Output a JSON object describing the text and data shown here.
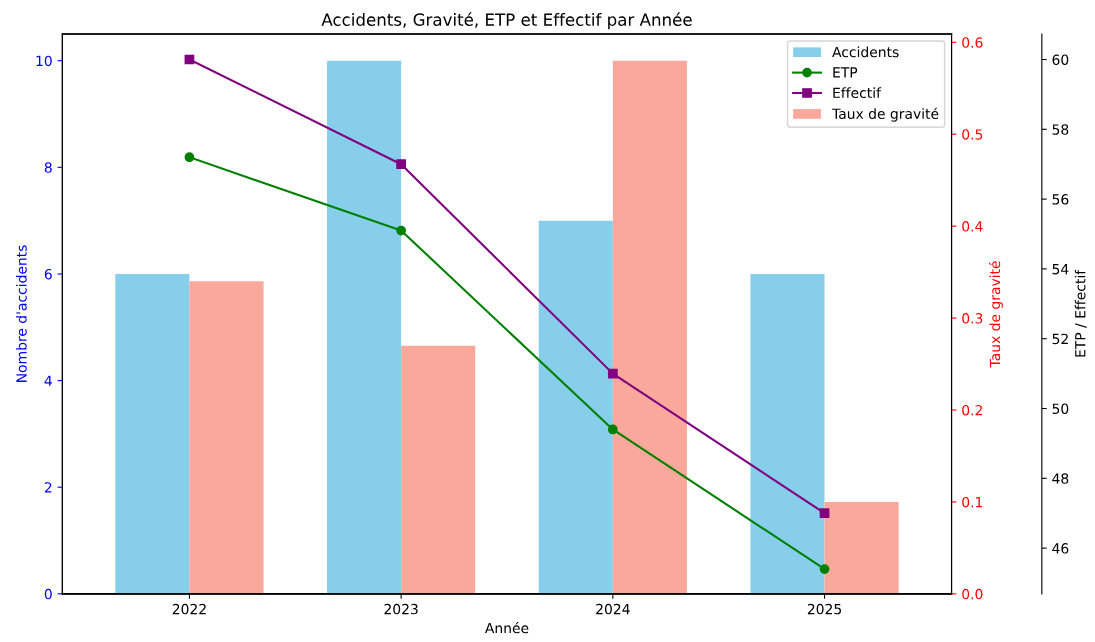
{
  "chart_data": {
    "type": "bar",
    "title": "Accidents, Gravité, ETP et Effectif par Année",
    "xlabel": "Année",
    "ylabel": "Nombre d'accidents",
    "y2label": "Taux de gravité",
    "y3label": "ETP / Effectif",
    "categories": [
      "2022",
      "2023",
      "2024",
      "2025"
    ],
    "series": [
      {
        "name": "Accidents",
        "color": "#87ceeb",
        "values": [
          6,
          10,
          7,
          6
        ]
      },
      {
        "name": "ETP",
        "type": "line",
        "axis": "y3",
        "color": "#008000",
        "marker": "circle",
        "values": [
          57.2,
          55.1,
          49.4,
          45.4
        ]
      },
      {
        "name": "Effectif",
        "type": "line",
        "axis": "y3",
        "color": "#800080",
        "marker": "square",
        "values": [
          60,
          57,
          51,
          47
        ]
      },
      {
        "name": "Taux de gravité",
        "axis": "y2",
        "color": "#f9a89b",
        "values": [
          0.34,
          0.27,
          0.58,
          0.1
        ]
      }
    ],
    "ylim": [
      0,
      10.5
    ],
    "yticks": [
      0,
      2,
      4,
      6,
      8,
      10
    ],
    "y2lim": [
      0,
      0.609
    ],
    "y2ticks": [
      {
        "value": 0,
        "label": "0.0"
      },
      0.1,
      0.2,
      0.3,
      0.4,
      0.5,
      0.6
    ],
    "y3lim": [
      44.69,
      60.73
    ],
    "y3ticks": [
      46,
      48,
      50,
      52,
      54,
      56,
      58,
      60
    ],
    "legend": "top right",
    "grid": false
  }
}
